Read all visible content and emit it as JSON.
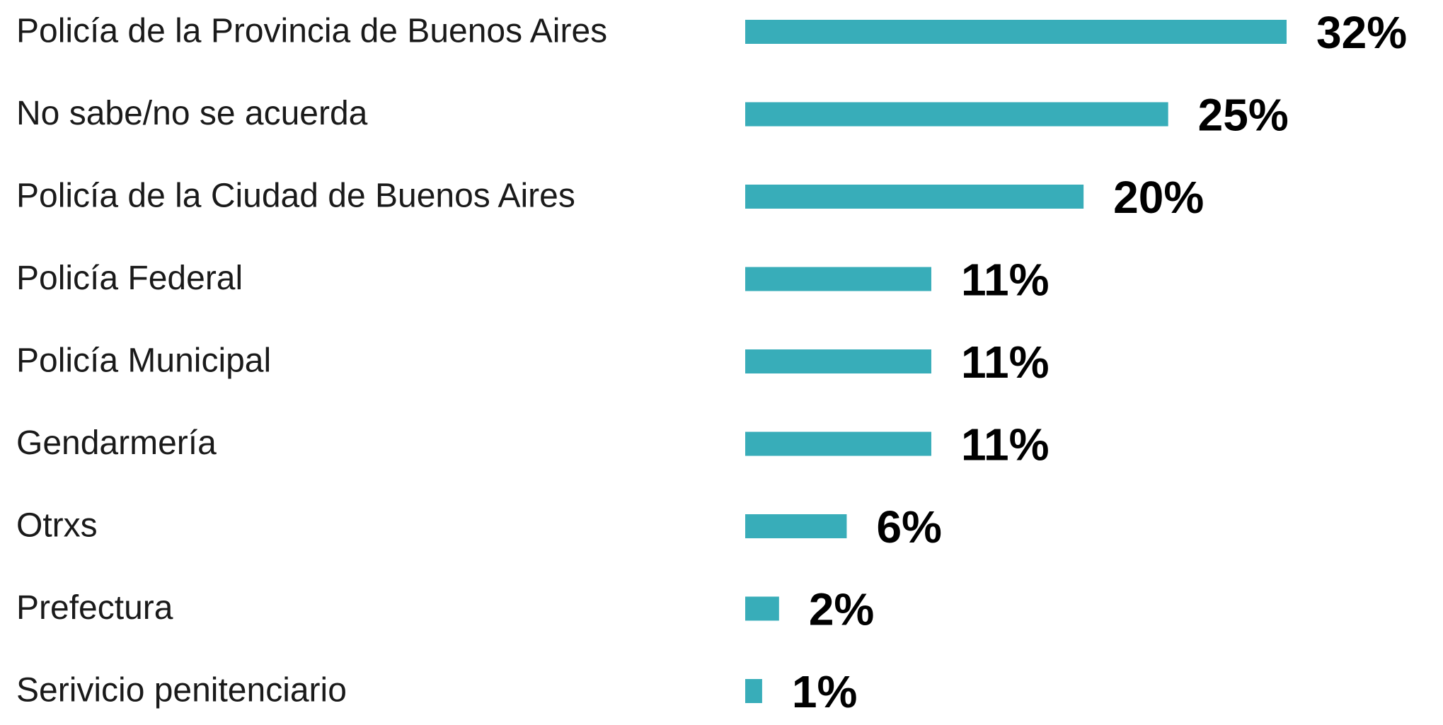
{
  "chart_data": {
    "type": "bar",
    "orientation": "horizontal",
    "categories": [
      "Policía de la Provincia de Buenos Aires",
      "No sabe/no se acuerda",
      "Policía de la Ciudad de Buenos Aires",
      "Policía Federal",
      "Policía Municipal",
      "Gendarmería",
      "Otrxs",
      "Prefectura",
      "Serivicio penitenciario"
    ],
    "values": [
      32,
      25,
      20,
      11,
      11,
      11,
      6,
      2,
      1
    ],
    "value_labels": [
      "32%",
      "25%",
      "20%",
      "11%",
      "11%",
      "11%",
      "6%",
      "2%",
      "1%"
    ],
    "color": "#38adb9"
  }
}
